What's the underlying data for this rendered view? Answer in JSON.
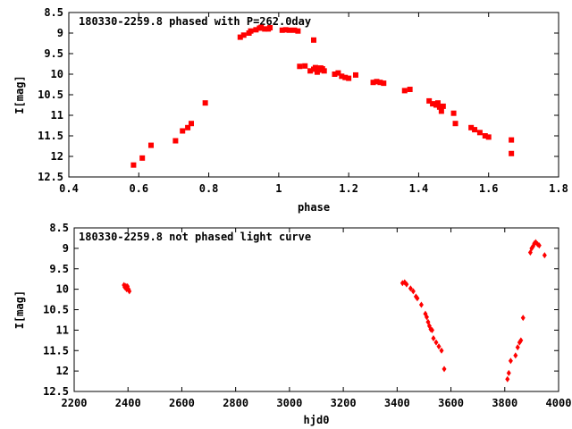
{
  "chart_data": [
    {
      "type": "scatter",
      "title": "180330-2259.8 phased with P=262.0day",
      "xlabel": "phase",
      "ylabel": "I[mag]",
      "xlim": [
        0.4,
        1.8
      ],
      "ylim": [
        12.5,
        8.5
      ],
      "y_inverted": true,
      "grid": false,
      "marker": "filled-square",
      "color": "#ff0000",
      "xticks": [
        "0.4",
        "0.6",
        "0.8",
        "1",
        "1.2",
        "1.4",
        "1.6",
        "1.8"
      ],
      "yticks": [
        "8.5",
        "9",
        "9.5",
        "10",
        "10.5",
        "11",
        "11.5",
        "12",
        "12.5"
      ],
      "series": [
        {
          "points": [
            [
              0.585,
              12.21
            ],
            [
              0.61,
              12.04
            ],
            [
              0.635,
              11.73
            ],
            [
              0.705,
              11.62
            ],
            [
              0.725,
              11.38
            ],
            [
              0.74,
              11.3
            ],
            [
              0.75,
              11.2
            ],
            [
              0.79,
              10.7
            ],
            [
              0.89,
              9.1
            ],
            [
              0.9,
              9.05
            ],
            [
              0.915,
              9.0
            ],
            [
              0.92,
              8.95
            ],
            [
              0.935,
              8.92
            ],
            [
              0.945,
              8.88
            ],
            [
              0.95,
              8.86
            ],
            [
              0.96,
              8.9
            ],
            [
              0.97,
              8.9
            ],
            [
              0.975,
              8.87
            ],
            [
              1.01,
              8.93
            ],
            [
              1.02,
              8.92
            ],
            [
              1.03,
              8.93
            ],
            [
              1.045,
              8.93
            ],
            [
              1.055,
              8.95
            ],
            [
              1.1,
              9.17
            ],
            [
              1.06,
              9.81
            ],
            [
              1.075,
              9.8
            ],
            [
              1.09,
              9.92
            ],
            [
              1.1,
              9.88
            ],
            [
              1.105,
              9.84
            ],
            [
              1.11,
              9.95
            ],
            [
              1.115,
              9.9
            ],
            [
              1.12,
              9.85
            ],
            [
              1.125,
              9.87
            ],
            [
              1.13,
              9.92
            ],
            [
              1.16,
              10.0
            ],
            [
              1.17,
              9.97
            ],
            [
              1.18,
              10.05
            ],
            [
              1.19,
              10.08
            ],
            [
              1.2,
              10.1
            ],
            [
              1.22,
              10.02
            ],
            [
              1.27,
              10.2
            ],
            [
              1.28,
              10.18
            ],
            [
              1.29,
              10.2
            ],
            [
              1.3,
              10.22
            ],
            [
              1.36,
              10.4
            ],
            [
              1.375,
              10.37
            ],
            [
              1.43,
              10.65
            ],
            [
              1.44,
              10.72
            ],
            [
              1.45,
              10.75
            ],
            [
              1.455,
              10.7
            ],
            [
              1.46,
              10.8
            ],
            [
              1.465,
              10.9
            ],
            [
              1.47,
              10.78
            ],
            [
              1.5,
              10.95
            ],
            [
              1.505,
              11.2
            ],
            [
              1.55,
              11.3
            ],
            [
              1.56,
              11.35
            ],
            [
              1.575,
              11.42
            ],
            [
              1.59,
              11.5
            ],
            [
              1.6,
              11.53
            ],
            [
              1.665,
              11.6
            ],
            [
              1.665,
              11.93
            ]
          ]
        }
      ]
    },
    {
      "type": "scatter",
      "title": "180330-2259.8 not phased light curve",
      "xlabel": "hjd0",
      "ylabel": "I[mag]",
      "xlim": [
        2200,
        4000
      ],
      "ylim": [
        12.5,
        8.5
      ],
      "y_inverted": true,
      "grid": false,
      "marker": "small-diamond",
      "color": "#ff0000",
      "xticks": [
        "2200",
        "2400",
        "2600",
        "2800",
        "3000",
        "3200",
        "3400",
        "3600",
        "3800",
        "4000"
      ],
      "yticks": [
        "8.5",
        "9",
        "9.5",
        "10",
        "10.5",
        "11",
        "11.5",
        "12",
        "12.5"
      ],
      "series": [
        {
          "points": [
            [
              2385,
              9.9
            ],
            [
              2388,
              9.95
            ],
            [
              2392,
              9.92
            ],
            [
              2395,
              10.0
            ],
            [
              2398,
              9.93
            ],
            [
              2402,
              10.0
            ],
            [
              2405,
              10.05
            ],
            [
              3420,
              9.85
            ],
            [
              3428,
              9.83
            ],
            [
              3435,
              9.88
            ],
            [
              3450,
              9.98
            ],
            [
              3460,
              10.05
            ],
            [
              3470,
              10.18
            ],
            [
              3475,
              10.22
            ],
            [
              3490,
              10.38
            ],
            [
              3505,
              10.6
            ],
            [
              3510,
              10.68
            ],
            [
              3515,
              10.8
            ],
            [
              3520,
              10.9
            ],
            [
              3525,
              10.98
            ],
            [
              3530,
              11.0
            ],
            [
              3535,
              11.2
            ],
            [
              3545,
              11.3
            ],
            [
              3555,
              11.4
            ],
            [
              3565,
              11.5
            ],
            [
              3575,
              11.95
            ],
            [
              3810,
              12.2
            ],
            [
              3815,
              12.05
            ],
            [
              3822,
              11.75
            ],
            [
              3840,
              11.62
            ],
            [
              3848,
              11.42
            ],
            [
              3855,
              11.3
            ],
            [
              3860,
              11.25
            ],
            [
              3868,
              10.7
            ],
            [
              3895,
              9.1
            ],
            [
              3900,
              9.0
            ],
            [
              3905,
              8.95
            ],
            [
              3910,
              8.88
            ],
            [
              3915,
              8.85
            ],
            [
              3922,
              8.9
            ],
            [
              3928,
              8.93
            ],
            [
              3948,
              9.17
            ]
          ]
        }
      ]
    }
  ]
}
